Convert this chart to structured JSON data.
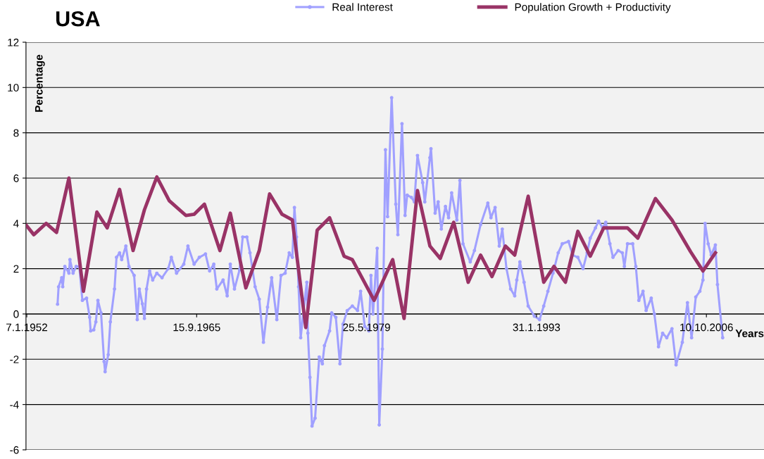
{
  "chart_data": {
    "type": "line",
    "title": "USA",
    "xlabel": "Years",
    "ylabel": "Percentage",
    "xlim": [
      "1951-12-15",
      "2011-06-01"
    ],
    "xticks": [
      {
        "value": "1952-01-07",
        "label": "7.1.1952"
      },
      {
        "value": "1965-09-15",
        "label": "15.9.1965"
      },
      {
        "value": "1979-05-25",
        "label": "25.5.1979"
      },
      {
        "value": "1993-01-31",
        "label": "31.1.1993"
      },
      {
        "value": "2006-10-10",
        "label": "10.10.2006"
      }
    ],
    "ylim": [
      -6,
      12
    ],
    "yticks": [
      -6,
      -4,
      -2,
      0,
      2,
      4,
      6,
      8,
      10,
      12
    ],
    "grid": "y",
    "legend": "top",
    "series": [
      {
        "name": "Real Interest",
        "color": "#a0a0ff",
        "marker": "circle",
        "x": [
          "1954-07",
          "1954-08",
          "1954-11",
          "1954-12",
          "1955-02",
          "1955-06",
          "1955-07",
          "1955-10",
          "1956-01",
          "1956-04",
          "1956-07",
          "1956-11",
          "1957-02",
          "1957-03",
          "1957-06",
          "1957-08",
          "1957-10",
          "1958-01",
          "1958-04",
          "1958-05",
          "1958-08",
          "1958-10",
          "1959-02",
          "1959-04",
          "1959-07",
          "1959-09",
          "1960-01",
          "1960-04",
          "1960-09",
          "1960-12",
          "1961-02",
          "1961-05",
          "1961-07",
          "1961-09",
          "1961-12",
          "1962-03",
          "1962-07",
          "1962-12",
          "1963-06",
          "1963-09",
          "1964-02",
          "1964-09",
          "1965-01",
          "1965-07",
          "1965-12",
          "1966-06",
          "1966-10",
          "1967-02",
          "1967-05",
          "1967-11",
          "1968-03",
          "1968-06",
          "1968-10",
          "1969-03",
          "1969-06",
          "1969-10",
          "1970-01",
          "1970-06",
          "1970-10",
          "1971-02",
          "1971-06",
          "1971-10",
          "1972-03",
          "1972-07",
          "1972-11",
          "1973-03",
          "1973-06",
          "1973-08",
          "1973-10",
          "1973-12",
          "1974-02",
          "1974-06",
          "1974-08",
          "1974-09",
          "1974-11",
          "1975-01",
          "1975-04",
          "1975-08",
          "1975-11",
          "1976-01",
          "1976-06",
          "1976-08",
          "1976-12",
          "1977-04",
          "1977-07",
          "1977-11",
          "1978-04",
          "1978-09",
          "1978-12",
          "1979-04",
          "1979-08",
          "1979-10",
          "1979-12",
          "1980-04",
          "1980-06",
          "1980-09",
          "1980-12",
          "1981-02",
          "1981-06",
          "1981-10",
          "1981-12",
          "1982-04",
          "1982-07",
          "1982-09",
          "1983-01",
          "1983-04",
          "1983-07",
          "1983-12",
          "1984-02",
          "1984-07",
          "1984-08",
          "1984-12",
          "1985-03",
          "1985-06",
          "1985-10",
          "1986-01",
          "1986-04",
          "1986-09",
          "1986-12",
          "1987-03",
          "1987-10",
          "1988-02",
          "1988-08",
          "1989-03",
          "1989-06",
          "1989-10",
          "1990-02",
          "1990-05",
          "1990-09",
          "1991-01",
          "1991-05",
          "1991-07",
          "1991-10",
          "1992-02",
          "1992-06",
          "1992-12",
          "1993-05",
          "1993-09",
          "1994-01",
          "1994-06",
          "1994-11",
          "1995-03",
          "1995-09",
          "1996-01",
          "1996-06",
          "1996-11",
          "1997-03",
          "1997-06",
          "1997-11",
          "1998-02",
          "1998-06",
          "1998-09",
          "1999-01",
          "1999-04",
          "1999-09",
          "2000-01",
          "2000-03",
          "2000-06",
          "2000-11",
          "2001-02",
          "2001-05",
          "2001-09",
          "2001-12",
          "2002-05",
          "2002-08",
          "2002-12",
          "2003-04",
          "2003-08",
          "2004-01",
          "2004-05",
          "2004-11",
          "2005-04",
          "2005-08",
          "2005-12",
          "2006-04",
          "2006-07",
          "2006-09",
          "2006-12",
          "2007-03",
          "2007-07",
          "2007-09",
          "2008-02"
        ],
        "values": [
          0.43,
          1.2,
          1.6,
          1.2,
          2.1,
          1.8,
          2.4,
          1.8,
          2.1,
          2.1,
          0.6,
          0.7,
          -0.15,
          -0.75,
          -0.7,
          -0.35,
          0.6,
          0.05,
          -2.1,
          -2.55,
          -1.8,
          -0.35,
          1.1,
          2.5,
          2.7,
          2.4,
          3.0,
          2.1,
          1.7,
          -0.25,
          1.1,
          0.45,
          -0.2,
          1.1,
          1.9,
          1.5,
          1.8,
          1.6,
          2.0,
          2.5,
          1.8,
          2.2,
          3.0,
          2.2,
          2.5,
          2.65,
          1.9,
          2.2,
          1.1,
          1.5,
          0.8,
          2.2,
          1.1,
          1.95,
          3.4,
          3.4,
          2.7,
          1.2,
          0.65,
          -1.25,
          0.3,
          1.6,
          -0.25,
          1.7,
          1.8,
          2.7,
          2.5,
          4.7,
          3.4,
          1.2,
          -1.05,
          0.65,
          1.4,
          -0.85,
          -2.8,
          -4.95,
          -4.6,
          -1.9,
          -2.2,
          -1.4,
          -0.75,
          0.05,
          -0.15,
          -2.2,
          -0.45,
          0.15,
          0.35,
          0.15,
          1.0,
          -0.55,
          -0.75,
          1.7,
          0.0,
          2.9,
          -4.9,
          -1.55,
          7.25,
          4.3,
          9.55,
          4.85,
          3.5,
          8.4,
          4.35,
          5.25,
          5.15,
          4.95,
          7.0,
          5.8,
          4.95,
          6.9,
          7.3,
          4.45,
          4.95,
          3.75,
          4.75,
          4.25,
          5.35,
          4.15,
          5.9,
          3.1,
          2.3,
          2.8,
          3.95,
          4.9,
          4.25,
          4.7,
          3.0,
          3.75,
          2.0,
          1.1,
          0.8,
          1.5,
          2.3,
          1.4,
          0.35,
          -0.1,
          -0.25,
          0.35,
          1.0,
          1.8,
          2.7,
          3.1,
          3.2,
          2.6,
          2.5,
          2.0,
          2.7,
          3.35,
          3.8,
          4.1,
          3.8,
          4.05,
          3.1,
          2.5,
          2.8,
          2.7,
          2.1,
          3.1,
          3.1,
          2.1,
          0.6,
          1.0,
          0.15,
          0.7,
          0.0,
          -1.45,
          -0.85,
          -1.05,
          -0.65,
          -2.25,
          -1.25,
          0.5,
          -1.05,
          0.75,
          1.0,
          1.5,
          4.0,
          3.1,
          2.6,
          3.05,
          1.3,
          -1.05
        ]
      },
      {
        "name": "Population Growth + Productivity",
        "color": "#993366",
        "marker": "none",
        "x": [
          "1952-01",
          "1952-08",
          "1953-08",
          "1954-06",
          "1955-06",
          "1956-08",
          "1957-09",
          "1958-07",
          "1959-07",
          "1960-08",
          "1961-07",
          "1962-07",
          "1963-07",
          "1964-11",
          "1965-07",
          "1966-05",
          "1967-08",
          "1968-06",
          "1969-09",
          "1970-10",
          "1971-08",
          "1972-08",
          "1973-06",
          "1974-07",
          "1975-06",
          "1976-06",
          "1977-08",
          "1978-04",
          "1980-01",
          "1981-07",
          "1982-06",
          "1983-07",
          "1984-07",
          "1985-05",
          "1986-06",
          "1987-08",
          "1988-08",
          "1989-07",
          "1990-08",
          "1991-05",
          "1992-06",
          "1993-09",
          "1994-07",
          "1995-06",
          "1996-06",
          "1997-06",
          "1998-07",
          "2000-06",
          "2001-04",
          "2002-09",
          "2004-01",
          "2005-07",
          "2006-07",
          "2007-07"
        ],
        "values": [
          3.9,
          3.5,
          4.0,
          3.6,
          6.0,
          1.0,
          4.5,
          3.8,
          5.5,
          2.8,
          4.6,
          6.05,
          5.0,
          4.35,
          4.4,
          4.85,
          2.8,
          4.45,
          1.15,
          2.8,
          5.3,
          4.4,
          4.15,
          -0.6,
          3.7,
          4.25,
          2.55,
          2.4,
          0.6,
          2.4,
          -0.2,
          5.45,
          3.0,
          2.45,
          4.05,
          1.4,
          2.6,
          1.65,
          3.0,
          2.6,
          5.2,
          1.4,
          2.1,
          1.4,
          3.65,
          2.55,
          3.8,
          3.8,
          3.35,
          5.1,
          4.15,
          2.75,
          1.9,
          2.7
        ]
      }
    ]
  }
}
